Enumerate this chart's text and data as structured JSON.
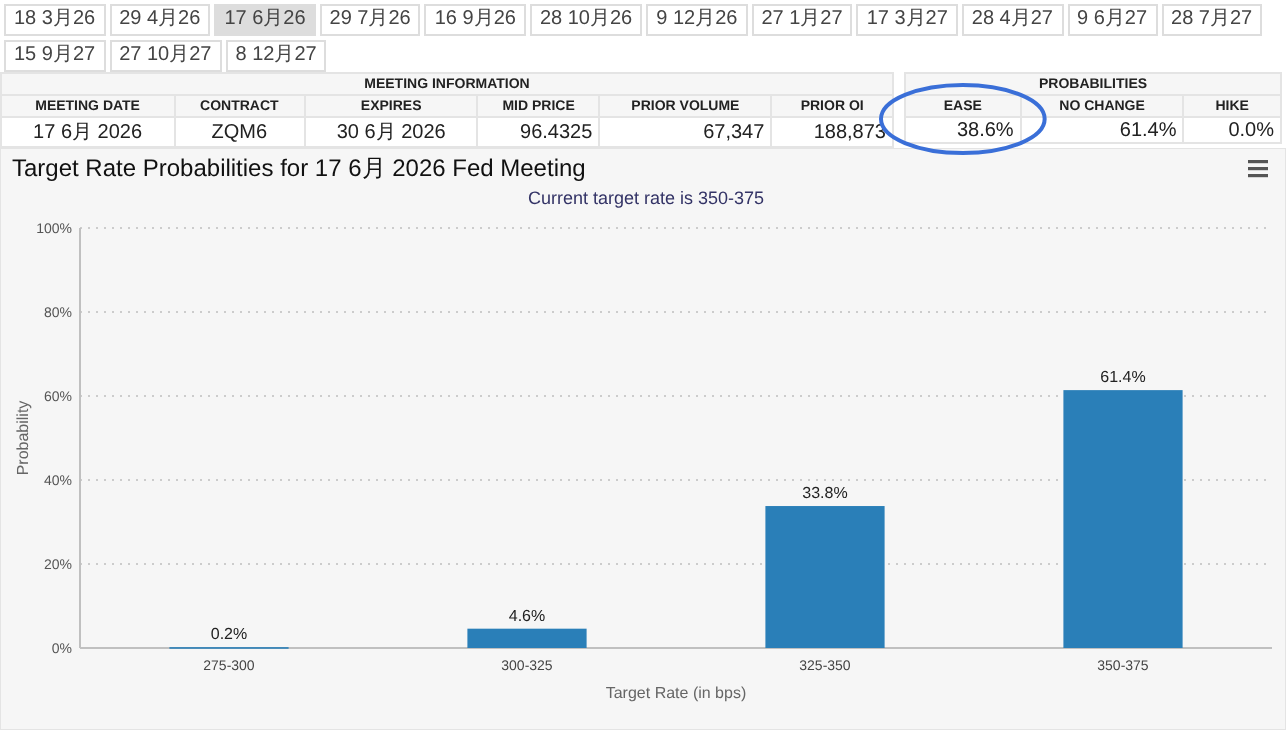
{
  "chart_data": {
    "type": "bar",
    "title": "Target Rate Probabilities for 17 6月 2026 Fed Meeting",
    "subtitle": "Current target rate is 350-375",
    "xlabel": "Target Rate (in bps)",
    "ylabel": "Probability",
    "categories": [
      "275-300",
      "300-325",
      "325-350",
      "350-375"
    ],
    "values": [
      0.2,
      4.6,
      33.8,
      61.4
    ],
    "value_labels": [
      "0.2%",
      "4.6%",
      "33.8%",
      "61.4%"
    ],
    "color": "#2a7fb8",
    "ylim": [
      0,
      100
    ],
    "yticks": [
      {
        "value": 0,
        "label": "0%"
      },
      {
        "value": 20,
        "label": "20%"
      },
      {
        "value": 40,
        "label": "40%"
      },
      {
        "value": 60,
        "label": "60%"
      },
      {
        "value": 80,
        "label": "80%"
      },
      {
        "value": 100,
        "label": "100%"
      }
    ],
    "grid": "y",
    "annotations": [
      "18 3月26",
      "29 4月26",
      "17 6月26",
      "29 7月26",
      "16 9月26",
      "28 10月26",
      "9 12月26",
      "27 1月27",
      "17 3月27",
      "28 4月27",
      "9 6月27",
      "28 7月27",
      "15 9月27",
      "27 10月27",
      "8 12月27",
      "MEETING INFORMATION",
      "MEETING DATE",
      "CONTRACT",
      "EXPIRES",
      "MID PRICE",
      "PRIOR VOLUME",
      "PRIOR OI",
      "17 6月 2026",
      "ZQM6",
      "30 6月 2026",
      "96.4325",
      "67,347",
      "188,873",
      "PROBABILITIES",
      "EASE",
      "NO CHANGE",
      "HIKE",
      "38.6%",
      "61.4%",
      "0.0%"
    ]
  }
}
